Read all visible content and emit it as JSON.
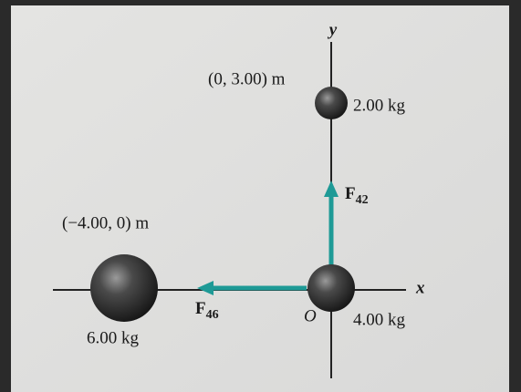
{
  "axes": {
    "y": "y",
    "x": "x",
    "origin": "O"
  },
  "masses": [
    {
      "position": "(0, 3.00) m",
      "mass": "2.00 kg"
    },
    {
      "mass": "4.00 kg"
    },
    {
      "position": "(−4.00, 0) m",
      "mass": "6.00 kg"
    }
  ],
  "forces": [
    {
      "symbol": "F",
      "subscript": "42"
    },
    {
      "symbol": "F",
      "subscript": "46"
    }
  ]
}
